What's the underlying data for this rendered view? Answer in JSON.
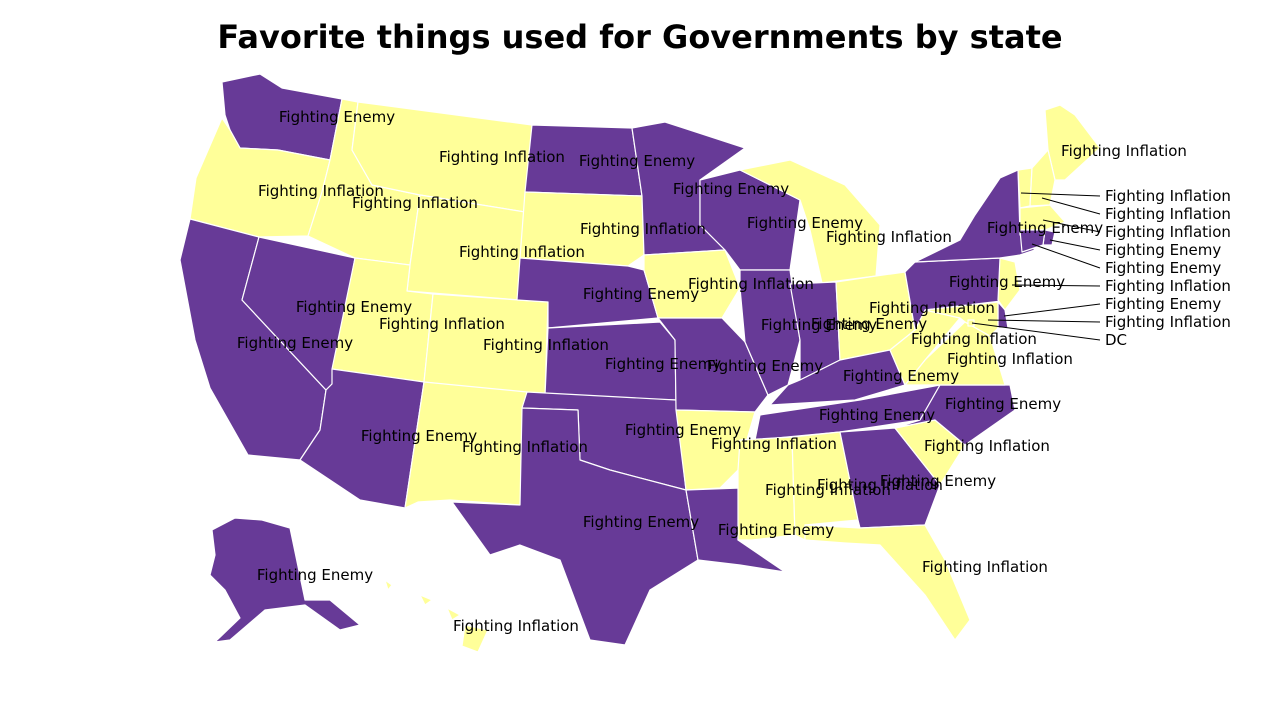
{
  "title": "Favorite things used for Governments by state",
  "colors": {
    "Fighting Enemy": "#673a97",
    "Fighting Inflation": "#ffff99"
  },
  "states": {
    "WA": "Fighting Enemy",
    "OR": "Fighting Inflation",
    "CA": "Fighting Enemy",
    "NV": "Fighting Enemy",
    "ID": "Fighting Inflation",
    "MT": "Fighting Inflation",
    "WY": "Fighting Inflation",
    "UT": "Fighting Inflation",
    "AZ": "Fighting Enemy",
    "CO": "Fighting Inflation",
    "NM": "Fighting Inflation",
    "ND": "Fighting Enemy",
    "SD": "Fighting Inflation",
    "NE": "Fighting Enemy",
    "KS": "Fighting Enemy",
    "OK": "Fighting Enemy",
    "TX": "Fighting Enemy",
    "MN": "Fighting Enemy",
    "IA": "Fighting Inflation",
    "MO": "Fighting Enemy",
    "AR": "Fighting Inflation",
    "LA": "Fighting Enemy",
    "WI": "Fighting Enemy",
    "IL": "Fighting Enemy",
    "MI": "Fighting Inflation",
    "IN": "Fighting Enemy",
    "OH": "Fighting Inflation",
    "KY": "Fighting Enemy",
    "TN": "Fighting Enemy",
    "MS": "Fighting Inflation",
    "AL": "Fighting Inflation",
    "GA": "Fighting Enemy",
    "FL": "Fighting Inflation",
    "SC": "Fighting Inflation",
    "NC": "Fighting Enemy",
    "VA": "Fighting Inflation",
    "WV": "Fighting Inflation",
    "PA": "Fighting Enemy",
    "NY": "Fighting Enemy",
    "ME": "Fighting Inflation",
    "AK": "Fighting Enemy",
    "HI": "Fighting Inflation",
    "VT": "Fighting Inflation",
    "NH": "Fighting Inflation",
    "MA": "Fighting Inflation",
    "RI": "Fighting Enemy",
    "CT": "Fighting Enemy",
    "NJ": "Fighting Inflation",
    "DE": "Fighting Enemy",
    "MD": "Fighting Inflation",
    "DC": "Fighting Inflation"
  },
  "callout_text": {
    "VT": "Fighting Inflation",
    "NH": "Fighting Inflation",
    "MA": "Fighting Inflation",
    "RI": "Fighting Enemy",
    "CT": "Fighting Enemy",
    "NJ": "Fighting Inflation",
    "DE": "Fighting Enemy",
    "MD": "Fighting Inflation",
    "DC": "DC"
  }
}
